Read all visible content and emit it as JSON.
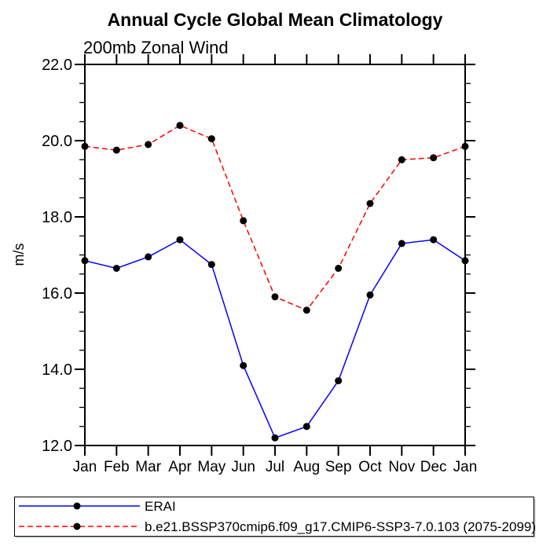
{
  "title": "Annual Cycle Global Mean Climatology",
  "subtitle": "200mb Zonal Wind",
  "chart_data": {
    "type": "line",
    "categories": [
      "Jan",
      "Feb",
      "Mar",
      "Apr",
      "May",
      "Jun",
      "Jul",
      "Aug",
      "Sep",
      "Oct",
      "Nov",
      "Dec",
      "Jan"
    ],
    "xlabel": "",
    "ylabel": "m/s",
    "ylim": [
      12.0,
      22.0
    ],
    "y_major_ticks": [
      12.0,
      14.0,
      16.0,
      18.0,
      20.0,
      22.0
    ],
    "y_tick_labels": [
      "12.0",
      "14.0",
      "16.0",
      "18.0",
      "20.0",
      "22.0"
    ],
    "y_minor_step": 0.5,
    "grid": false,
    "tick_direction": "out",
    "marker": "filled-circle",
    "marker_color": "#000000",
    "legend_position": "bottom-left-box",
    "series": [
      {
        "name": "ERAI",
        "color": "#0000ff",
        "style": "solid",
        "values": [
          16.85,
          16.65,
          16.95,
          17.4,
          16.75,
          14.1,
          12.2,
          12.5,
          13.7,
          15.95,
          17.3,
          17.4,
          16.85
        ]
      },
      {
        "name": "b.e21.BSSP370cmip6.f09_g17.CMIP6-SSP3-7.0.103 (2075-2099)",
        "color": "#ff0000",
        "style": "dashed",
        "values": [
          19.85,
          19.75,
          19.9,
          20.4,
          20.05,
          17.9,
          15.9,
          15.55,
          16.65,
          18.35,
          19.5,
          19.55,
          19.85
        ]
      }
    ]
  },
  "colors": {
    "axis": "#000000",
    "background": "#ffffff",
    "erai_line": "#0000ff",
    "model_line": "#ff0000",
    "marker": "#000000"
  }
}
